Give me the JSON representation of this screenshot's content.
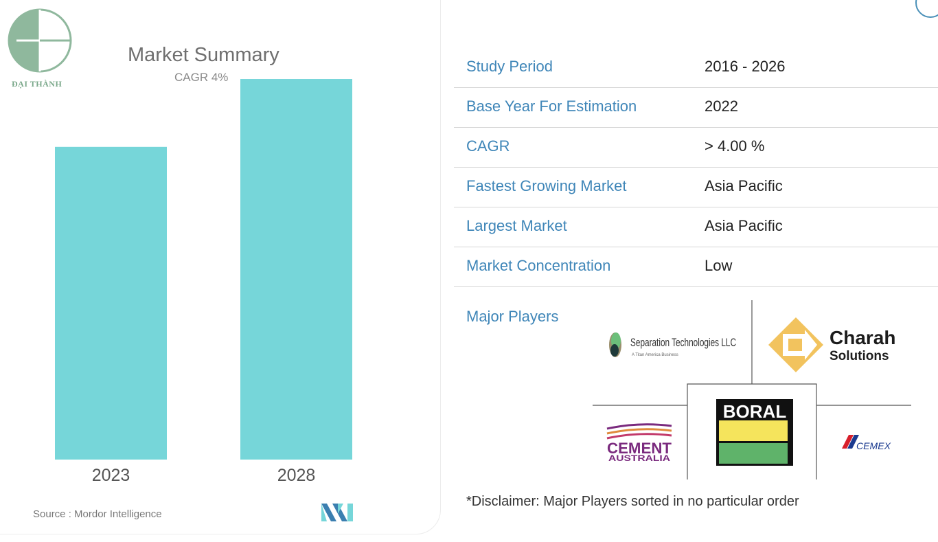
{
  "brand": {
    "name": "ĐẠI THÀNH"
  },
  "header": {
    "title": "Market Summary",
    "subtitle": "CAGR 4%"
  },
  "chart_data": {
    "type": "bar",
    "title": "Market Summary",
    "subtitle": "CAGR 4%",
    "categories": [
      "2023",
      "2028"
    ],
    "values": [
      100,
      121.7
    ],
    "ylim": [
      0,
      125
    ],
    "xlabel": "",
    "ylabel": "",
    "grid": false,
    "color": "#76d6d9"
  },
  "source": {
    "text": "Source : Mordor Intelligence"
  },
  "summary_rows": [
    {
      "key": "Study Period",
      "value": "2016 - 2026"
    },
    {
      "key": "Base Year For Estimation",
      "value": "2022"
    },
    {
      "key": "CAGR",
      "value": "> 4.00 %"
    },
    {
      "key": "Fastest Growing Market",
      "value": "Asia Pacific"
    },
    {
      "key": "Largest Market",
      "value": "Asia Pacific"
    },
    {
      "key": "Market Concentration",
      "value": "Low"
    }
  ],
  "major_players": {
    "label": "Major Players",
    "players": {
      "separation": {
        "name": "Separation Technologies LLC",
        "tagline": "A Titan America Business"
      },
      "charah": {
        "line1": "Charah",
        "line2": "Solutions"
      },
      "boral": {
        "name": "BORAL"
      },
      "cement_australia": {
        "line1": "CEMENT",
        "line2": "AUSTRALIA"
      },
      "cemex": {
        "name": "CEMEX"
      }
    }
  },
  "disclaimer": "*Disclaimer: Major Players sorted in no particular order"
}
